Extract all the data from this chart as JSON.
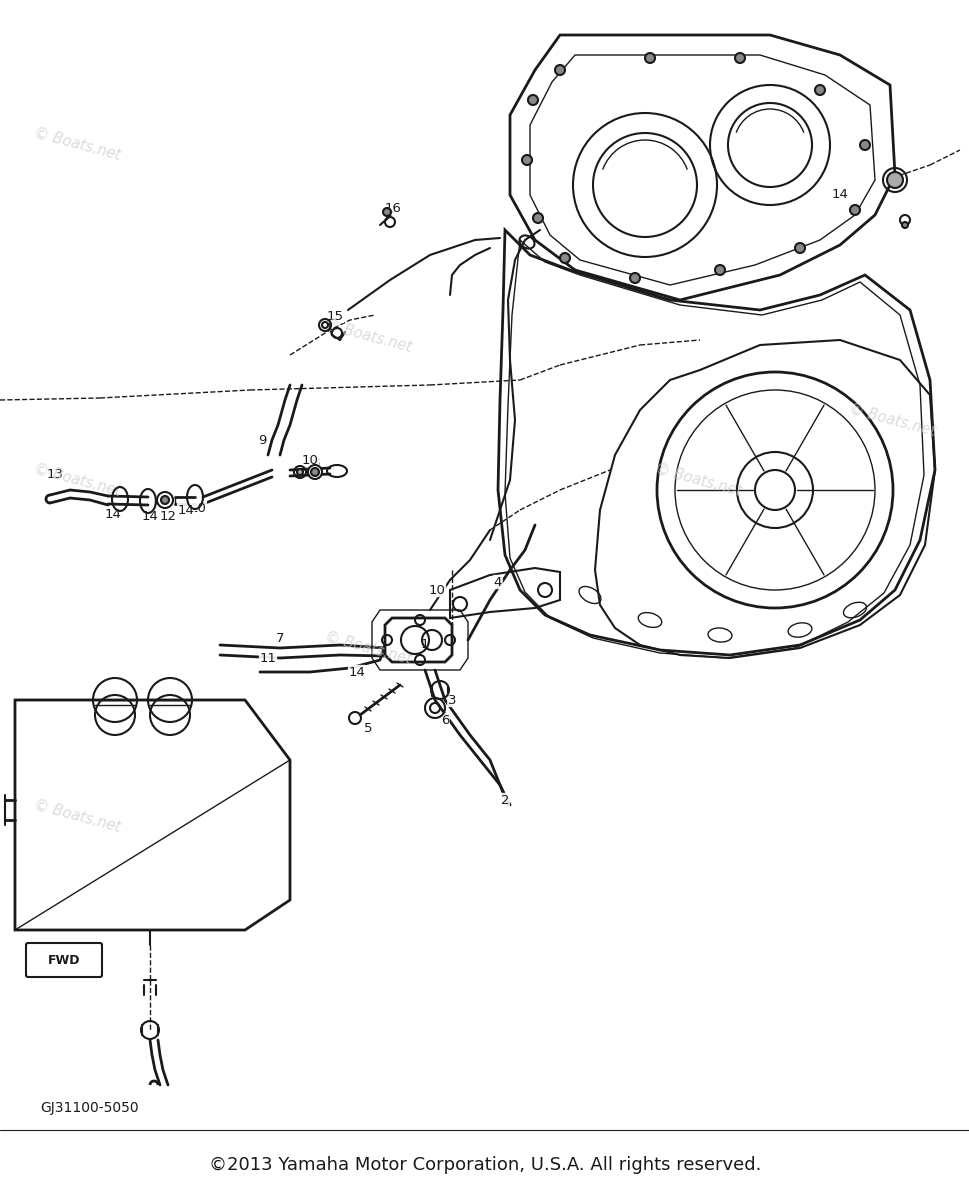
{
  "background_color": "#ffffff",
  "watermark_text": "© Boats.net",
  "watermark_color": "#cccccc",
  "footer_text": "©2013 Yamaha Motor Corporation, U.S.A. All rights reserved.",
  "footer_fontsize": 13,
  "part_number_text": "GJ31100-5050",
  "part_number_fontsize": 10,
  "line_color": "#1a1a1a",
  "line_width": 1.5,
  "thin_line": 1.0,
  "thick_line": 2.0
}
